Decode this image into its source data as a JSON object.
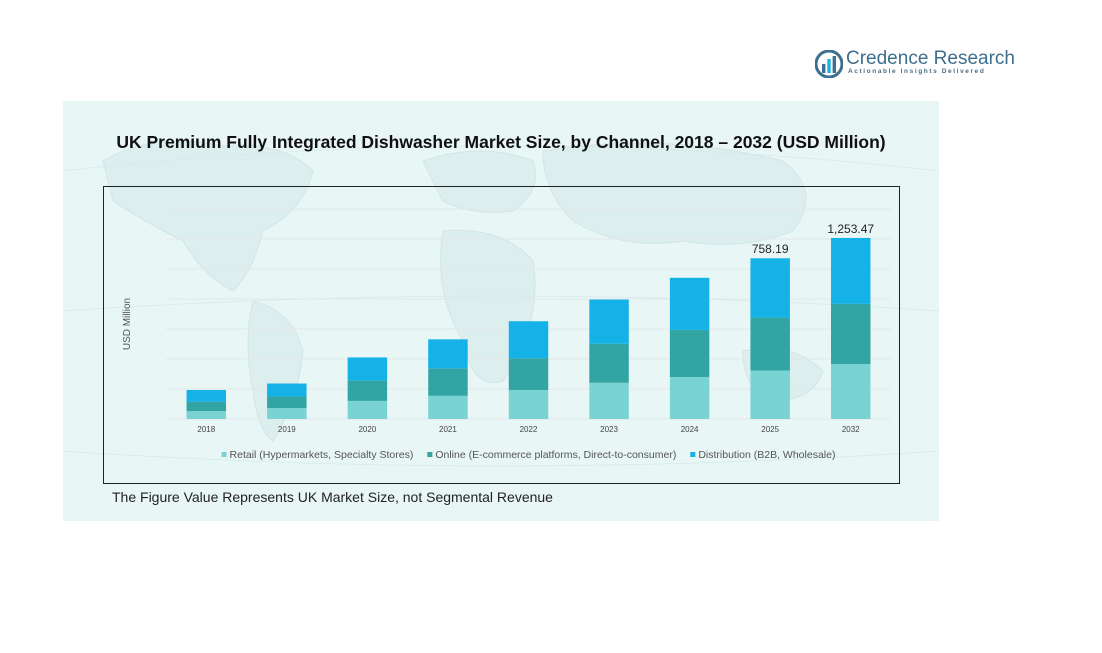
{
  "brand": {
    "name": "Credence Research",
    "tagline": "Actionable Insights Delivered"
  },
  "chart_data": {
    "type": "bar",
    "stacked": true,
    "title": "UK Premium Fully Integrated Dishwasher Market Size, by Channel, 2018 – 2032 (USD Million)",
    "ylabel": "USD Million",
    "xlabel": "",
    "categories": [
      "2018",
      "2019",
      "2020",
      "2021",
      "2022",
      "2023",
      "2024",
      "2025",
      "2032"
    ],
    "ylim": [
      0,
      1450
    ],
    "grid": true,
    "legend_position": "bottom",
    "series": [
      {
        "name": "Retail (Hypermarkets, Specialty Stores)",
        "color": "#7ad3d3",
        "values": [
          55,
          75,
          125,
          160,
          200,
          250,
          290,
          335,
          380
        ]
      },
      {
        "name": "Online (E-commerce platforms, Direct-to-consumer)",
        "color": "#33a4a4",
        "values": [
          65,
          80,
          140,
          190,
          220,
          270,
          325,
          365,
          415
        ]
      },
      {
        "name": "Distribution (B2B, Wholesale)",
        "color": "#14b2e6",
        "values": [
          80,
          90,
          160,
          200,
          255,
          305,
          360,
          410,
          455
        ]
      }
    ],
    "data_labels": [
      {
        "category": "2025",
        "text": "758.19"
      },
      {
        "category": "2032",
        "text": "1,253.47"
      }
    ],
    "footnote": "The Figure Value Represents UK Market Size, not Segmental Revenue"
  },
  "colors": {
    "panel_background": "#e8f6f6",
    "gridline": "#e3e8e8",
    "logo_blue": "#3d6f8e",
    "logo_accent": "#1fb4e0"
  },
  "icons": {
    "logo_mark": "bar-chart-icon"
  }
}
